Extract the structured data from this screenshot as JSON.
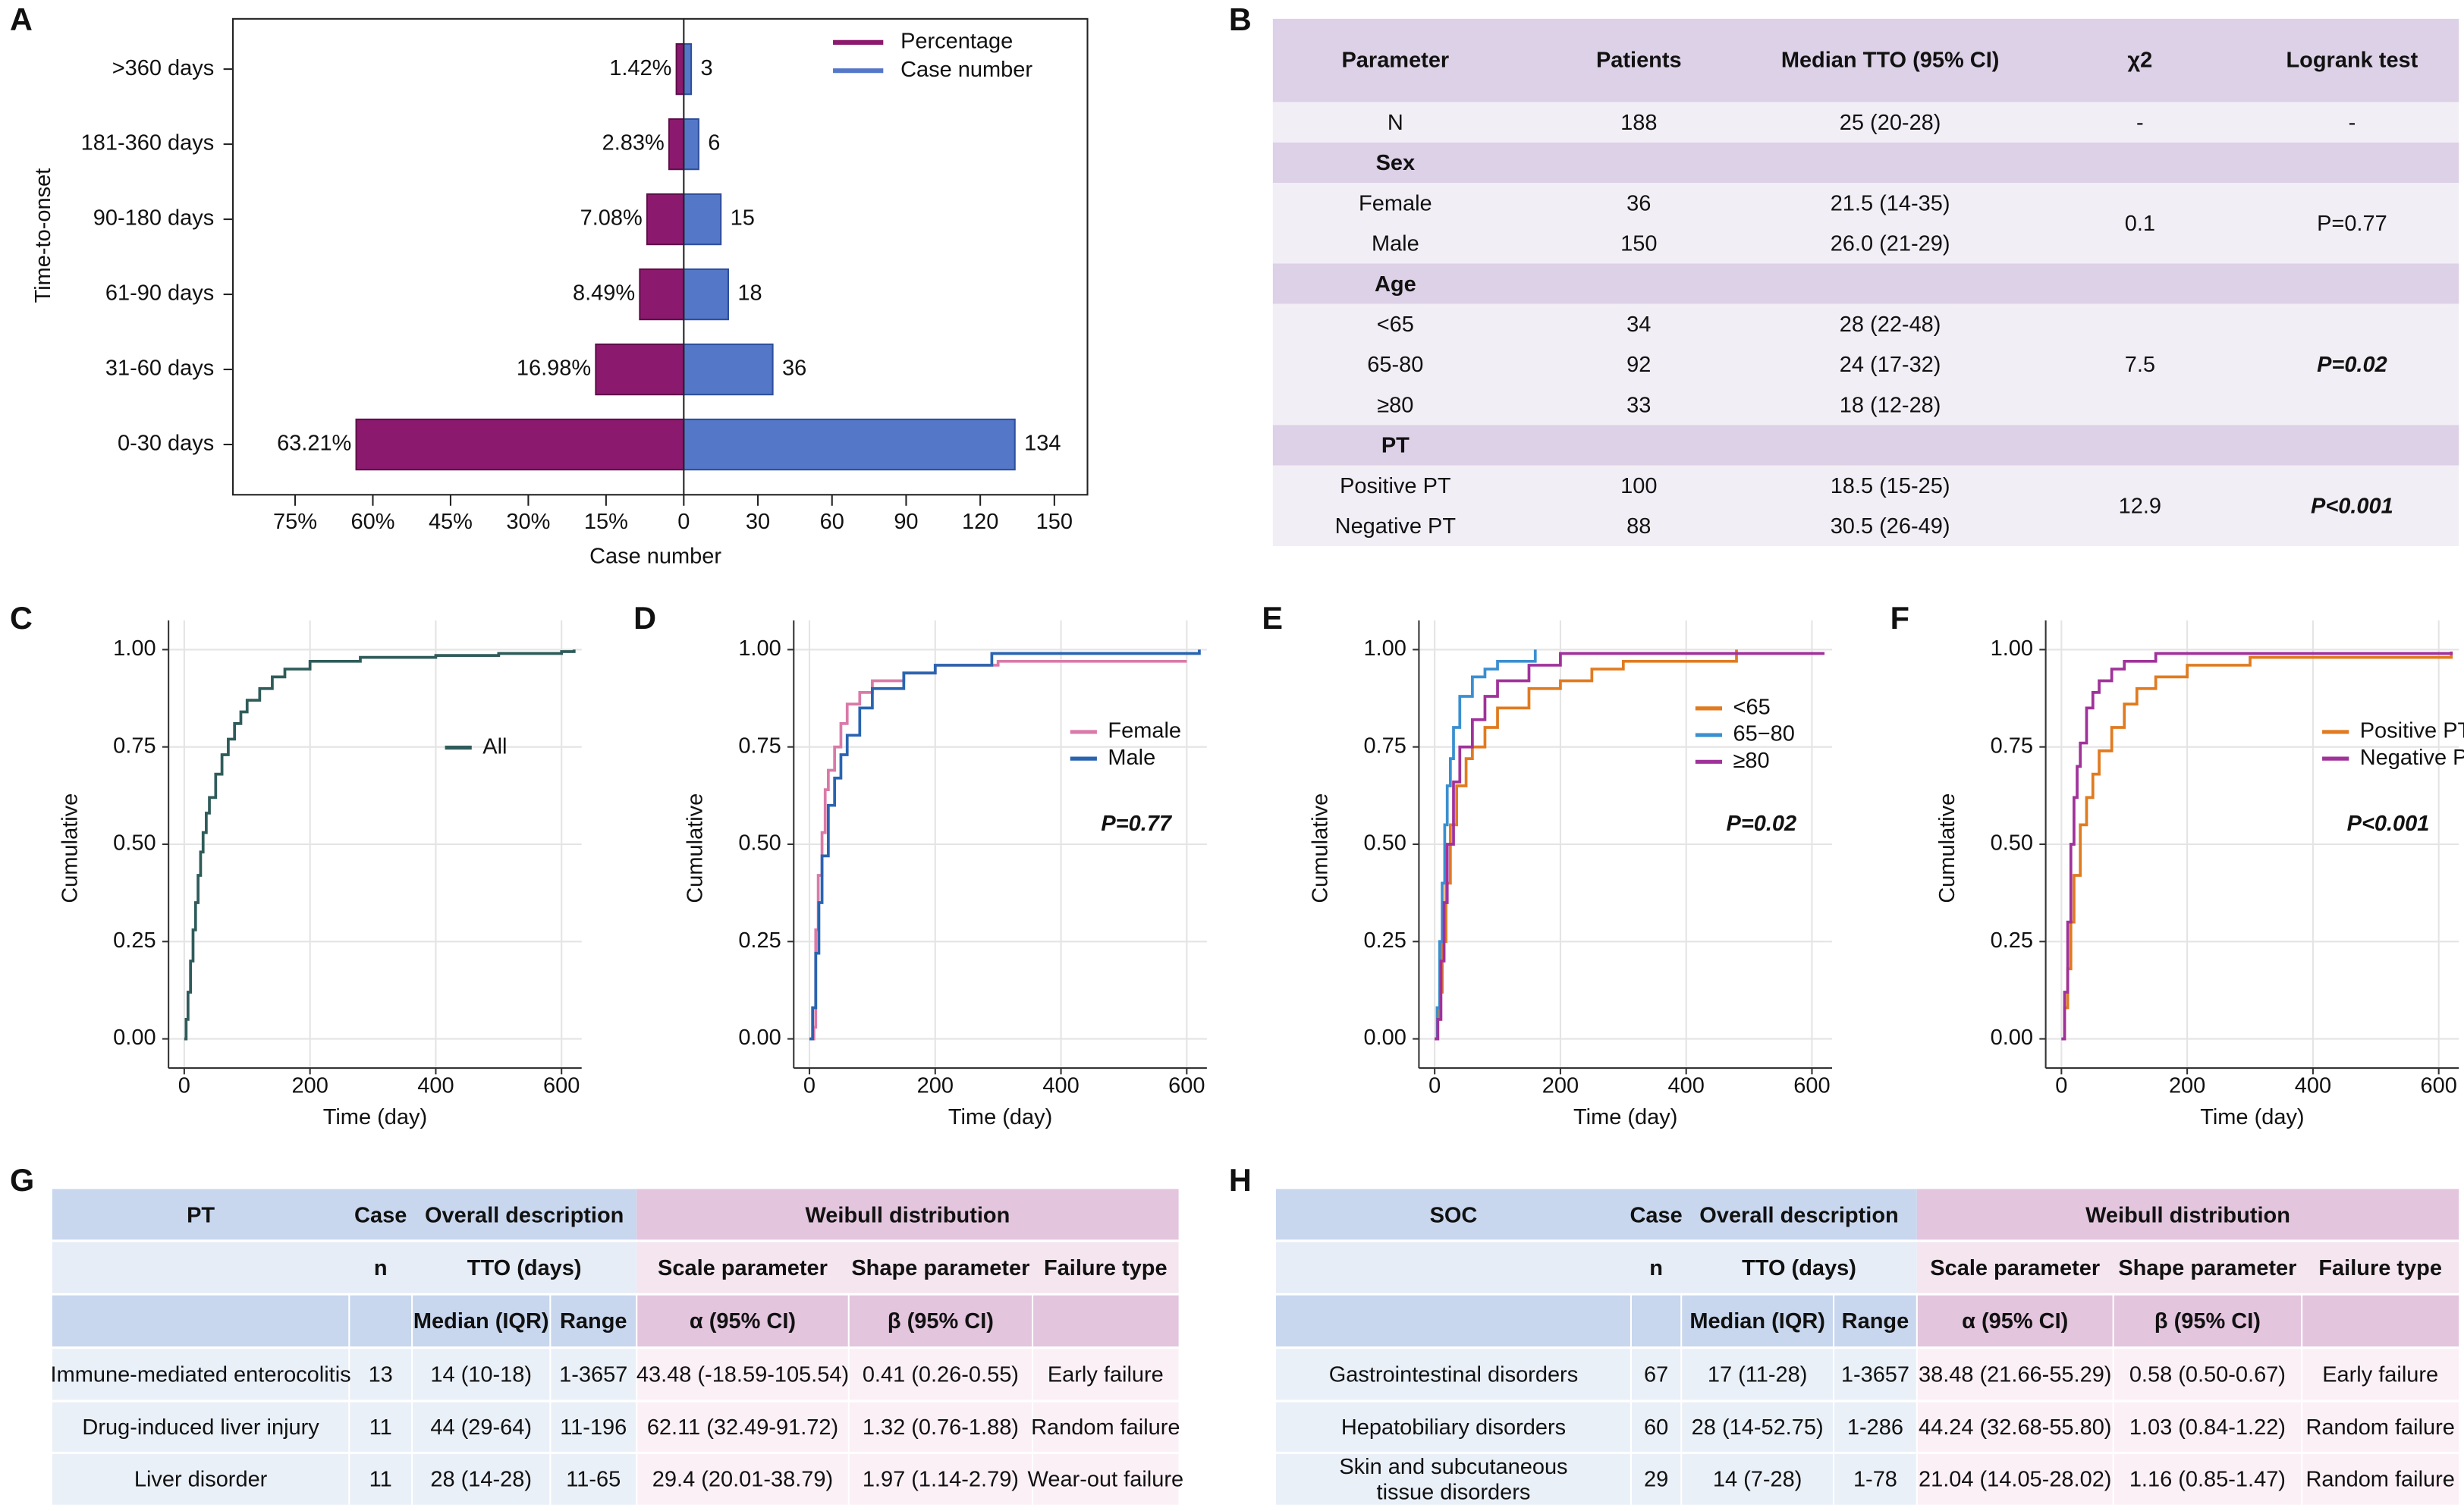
{
  "panel_labels": [
    "A",
    "B",
    "C",
    "D",
    "E",
    "F",
    "G",
    "H"
  ],
  "chart_data": [
    {
      "type": "butterfly",
      "categories": [
        ">360 days",
        "181-360 days",
        "90-180 days",
        "61-90 days",
        "31-60 days",
        "0-30 days"
      ],
      "series": [
        {
          "name": "Percentage",
          "color": "#8b1a6e",
          "axis": "x2",
          "values": [
            1.42,
            2.83,
            7.08,
            8.49,
            16.98,
            63.21
          ],
          "value_labels": [
            "1.42%",
            "2.83%",
            "7.08%",
            "8.49%",
            "16.98%",
            "63.21%"
          ]
        },
        {
          "name": "Case number",
          "color": "#5577c8",
          "values": [
            3,
            6,
            15,
            18,
            36,
            134
          ]
        }
      ],
      "xlim": [
        0,
        163.4
      ],
      "xticks": [
        0,
        30,
        60,
        90,
        120,
        150
      ],
      "x2lim": [
        0,
        87
      ],
      "x2ticks": [
        {
          "value": 15,
          "label": "15%"
        },
        {
          "value": 30,
          "label": "30%"
        },
        {
          "value": 45,
          "label": "45%"
        },
        {
          "value": 60,
          "label": "60%"
        },
        {
          "value": 75,
          "label": "75%"
        }
      ],
      "xlabel": "Case number",
      "ylabel": "Time-to-onset"
    },
    {
      "type": "step",
      "xlabel": "Time (day)",
      "ylabel": "Cumulative",
      "xlim": [
        -25,
        632
      ],
      "ylim": [
        -0.075,
        1.075
      ],
      "xticks": [
        0,
        200,
        400,
        600
      ],
      "yticks": [
        {
          "value": 0,
          "label": "0.00"
        },
        {
          "value": 0.25,
          "label": "0.25"
        },
        {
          "value": 0.5,
          "label": "0.50"
        },
        {
          "value": 0.75,
          "label": "0.75"
        },
        {
          "value": 1,
          "label": "1.00"
        }
      ],
      "grid": true,
      "series": [
        {
          "name": "All",
          "color": "#2f5c5a",
          "x": [
            0,
            3,
            6,
            10,
            14,
            18,
            22,
            26,
            30,
            35,
            40,
            50,
            60,
            70,
            80,
            90,
            100,
            120,
            140,
            160,
            200,
            280,
            400,
            500,
            600,
            620
          ],
          "values": [
            0,
            0.05,
            0.12,
            0.2,
            0.28,
            0.35,
            0.42,
            0.48,
            0.53,
            0.58,
            0.62,
            0.68,
            0.73,
            0.77,
            0.81,
            0.84,
            0.87,
            0.9,
            0.93,
            0.95,
            0.97,
            0.98,
            0.985,
            0.99,
            0.995,
            1.0
          ]
        }
      ]
    },
    {
      "type": "step",
      "xlabel": "Time (day)",
      "ylabel": "Cumulative",
      "xlim": [
        -25,
        632
      ],
      "ylim": [
        -0.075,
        1.075
      ],
      "xticks": [
        0,
        200,
        400,
        600
      ],
      "yticks": [
        {
          "value": 0,
          "label": "0.00"
        },
        {
          "value": 0.25,
          "label": "0.25"
        },
        {
          "value": 0.5,
          "label": "0.50"
        },
        {
          "value": 0.75,
          "label": "0.75"
        },
        {
          "value": 1,
          "label": "1.00"
        }
      ],
      "grid": true,
      "annotation": "P=0.77",
      "series": [
        {
          "name": "Female",
          "color": "#d97aa8",
          "x": [
            0,
            7,
            10,
            14,
            20,
            25,
            30,
            40,
            50,
            60,
            80,
            100,
            150,
            200,
            300,
            600
          ],
          "values": [
            0,
            0.03,
            0.28,
            0.42,
            0.53,
            0.64,
            0.69,
            0.75,
            0.81,
            0.86,
            0.89,
            0.92,
            0.94,
            0.96,
            0.97,
            0.97
          ]
        },
        {
          "name": "Male",
          "color": "#2a64b0",
          "x": [
            0,
            5,
            10,
            15,
            20,
            30,
            40,
            50,
            60,
            80,
            100,
            150,
            200,
            290,
            500,
            620
          ],
          "values": [
            0,
            0.08,
            0.22,
            0.35,
            0.47,
            0.6,
            0.67,
            0.73,
            0.78,
            0.85,
            0.9,
            0.94,
            0.96,
            0.99,
            0.99,
            1.0
          ]
        }
      ]
    },
    {
      "type": "step",
      "xlabel": "Time (day)",
      "ylabel": "Cumulative",
      "xlim": [
        -25,
        632
      ],
      "ylim": [
        -0.075,
        1.075
      ],
      "xticks": [
        0,
        200,
        400,
        600
      ],
      "yticks": [
        {
          "value": 0,
          "label": "0.00"
        },
        {
          "value": 0.25,
          "label": "0.25"
        },
        {
          "value": 0.5,
          "label": "0.50"
        },
        {
          "value": 0.75,
          "label": "0.75"
        },
        {
          "value": 1,
          "label": "1.00"
        }
      ],
      "grid": true,
      "annotation": "P=0.02",
      "series": [
        {
          "name": "<65",
          "color": "#e07b20",
          "x": [
            0,
            5,
            8,
            12,
            18,
            25,
            35,
            50,
            60,
            80,
            100,
            150,
            200,
            250,
            300,
            480
          ],
          "values": [
            0,
            0.05,
            0.12,
            0.25,
            0.4,
            0.55,
            0.65,
            0.72,
            0.75,
            0.8,
            0.85,
            0.9,
            0.92,
            0.95,
            0.97,
            1.0
          ]
        },
        {
          "name": "65−80",
          "color": "#3a8fd0",
          "x": [
            0,
            4,
            8,
            12,
            16,
            20,
            25,
            30,
            40,
            60,
            80,
            100,
            130,
            160
          ],
          "values": [
            0,
            0.08,
            0.25,
            0.4,
            0.55,
            0.65,
            0.72,
            0.8,
            0.88,
            0.93,
            0.95,
            0.97,
            0.97,
            1.0
          ]
        },
        {
          "name": "≥80",
          "color": "#a0329a",
          "x": [
            0,
            5,
            10,
            15,
            20,
            30,
            40,
            60,
            80,
            100,
            150,
            200,
            300,
            620
          ],
          "values": [
            0,
            0.05,
            0.2,
            0.35,
            0.5,
            0.66,
            0.75,
            0.82,
            0.88,
            0.92,
            0.96,
            0.99,
            0.99,
            0.99
          ]
        }
      ]
    },
    {
      "type": "step",
      "xlabel": "Time (day)",
      "ylabel": "Cumulative",
      "xlim": [
        -25,
        632
      ],
      "ylim": [
        -0.075,
        1.075
      ],
      "xticks": [
        0,
        200,
        400,
        600
      ],
      "yticks": [
        {
          "value": 0,
          "label": "0.00"
        },
        {
          "value": 0.25,
          "label": "0.25"
        },
        {
          "value": 0.5,
          "label": "0.50"
        },
        {
          "value": 0.75,
          "label": "0.75"
        },
        {
          "value": 1,
          "label": "1.00"
        }
      ],
      "grid": true,
      "annotation": "P<0.001",
      "series": [
        {
          "name": "Positive PT",
          "color": "#e07b20",
          "x": [
            0,
            5,
            10,
            15,
            20,
            30,
            40,
            50,
            60,
            80,
            100,
            120,
            150,
            200,
            300,
            400,
            620
          ],
          "values": [
            0,
            0.08,
            0.18,
            0.3,
            0.42,
            0.55,
            0.62,
            0.68,
            0.74,
            0.8,
            0.86,
            0.9,
            0.93,
            0.96,
            0.98,
            0.98,
            0.99
          ]
        },
        {
          "name": "Negative PT",
          "color": "#a0329a",
          "x": [
            0,
            5,
            10,
            15,
            20,
            25,
            30,
            40,
            50,
            60,
            80,
            100,
            150,
            200,
            620
          ],
          "values": [
            0,
            0.12,
            0.3,
            0.5,
            0.62,
            0.7,
            0.76,
            0.85,
            0.89,
            0.92,
            0.95,
            0.97,
            0.99,
            0.99,
            0.995
          ]
        }
      ]
    }
  ],
  "table_b": {
    "header": [
      "Parameter",
      "Patients",
      "Median TTO (95% CI)",
      "χ2",
      "Logrank test"
    ],
    "sections": [
      {
        "rows": [
          [
            "N",
            "188",
            "25 (20-28)"
          ]
        ],
        "chi2": "-",
        "logrank": "-",
        "logrank_bold": false
      },
      {
        "title": "Sex",
        "rows": [
          [
            "Female",
            "36",
            "21.5 (14-35)"
          ],
          [
            "Male",
            "150",
            "26.0 (21-29)"
          ]
        ],
        "chi2": "0.1",
        "logrank": "P=0.77",
        "logrank_bold": false
      },
      {
        "title": "Age",
        "rows": [
          [
            "<65",
            "34",
            "28 (22-48)"
          ],
          [
            "65-80",
            "92",
            "24 (17-32)"
          ],
          [
            "≥80",
            "33",
            "18 (12-28)"
          ]
        ],
        "chi2": "7.5",
        "logrank": "P=0.02",
        "logrank_bold": true
      },
      {
        "title": "PT",
        "rows": [
          [
            "Positive PT",
            "100",
            "18.5 (15-25)"
          ],
          [
            "Negative PT",
            "88",
            "30.5 (26-49)"
          ]
        ],
        "chi2": "12.9",
        "logrank": "P<0.001",
        "logrank_bold": true
      }
    ]
  },
  "table_g": {
    "header": [
      [
        "PT",
        "Case",
        "Overall description",
        "Weibull distribution"
      ],
      [
        "n",
        "TTO (days)",
        "Scale parameter",
        "Shape parameter",
        "Failure type"
      ],
      [
        "Median (IQR)",
        "Range",
        "α (95% CI)",
        "β (95% CI)"
      ]
    ],
    "body": [
      [
        "Immune-mediated enterocolitis",
        "13",
        "14 (10-18)",
        "1-3657",
        "43.48 (-18.59-105.54)",
        "0.41 (0.26-0.55)",
        "Early failure"
      ],
      [
        "Drug-induced liver injury",
        "11",
        "44 (29-64)",
        "11-196",
        "62.11 (32.49-91.72)",
        "1.32 (0.76-1.88)",
        "Random failure"
      ],
      [
        "Liver disorder",
        "11",
        "28 (14-28)",
        "11-65",
        "29.4 (20.01-38.79)",
        "1.97 (1.14-2.79)",
        "Wear-out failure"
      ]
    ]
  },
  "table_h": {
    "header": [
      [
        "SOC",
        "Case",
        "Overall description",
        "Weibull distribution"
      ],
      [
        "n",
        "TTO (days)",
        "Scale parameter",
        "Shape parameter",
        "Failure type"
      ],
      [
        "Median (IQR)",
        "Range",
        "α (95% CI)",
        "β (95% CI)"
      ]
    ],
    "body": [
      [
        "Gastrointestinal disorders",
        "67",
        "17 (11-28)",
        "1-3657",
        "38.48 (21.66-55.29)",
        "0.58 (0.50-0.67)",
        "Early failure"
      ],
      [
        "Hepatobiliary disorders",
        "60",
        "28 (14-52.75)",
        "1-286",
        "44.24 (32.68-55.80)",
        "1.03 (0.84-1.22)",
        "Random failure"
      ],
      [
        "Skin and subcutaneous\ntissue disorders",
        "29",
        "14 (7-28)",
        "1-78",
        "21.04 (14.05-28.02)",
        "1.16 (0.85-1.47)",
        "Random failure"
      ]
    ]
  }
}
